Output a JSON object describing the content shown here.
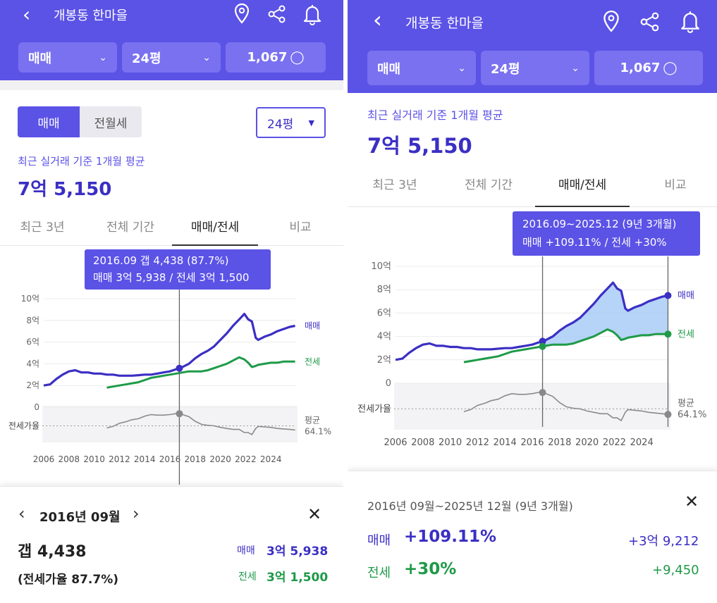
{
  "header": {
    "title": "개봉동 한마을",
    "filters": {
      "trade_type": "매매",
      "size": "24평",
      "count": "1,067"
    }
  },
  "controls": {
    "segment": [
      "매매",
      "전월세"
    ],
    "size_dropdown": "24평"
  },
  "summary": {
    "label": "최근 실거래 기준 1개월 평균",
    "value": "7억 5,150"
  },
  "tabs": [
    "최근 3년",
    "전체 기간",
    "매매/전세",
    "비교"
  ],
  "chart_labels": {
    "y_ticks": [
      "10억",
      "8억",
      "6억",
      "4억",
      "2억",
      "0"
    ],
    "x_ticks": [
      "2006",
      "2008",
      "2010",
      "2012",
      "2014",
      "2016",
      "2018",
      "2020",
      "2022",
      "2024"
    ],
    "series_sale": "매매",
    "series_rent": "전세",
    "ratio_label": "전세가율",
    "avg_label": "평균",
    "avg_value": "64.1%"
  },
  "left": {
    "tooltip": {
      "line1": "2016.09  갭 4,438 (87.7%)",
      "line2": "매매 3억 5,938 / 전세 3억 1,500"
    },
    "detail": {
      "month": "2016년 09월",
      "gap": "갭 4,438",
      "ratio": "(전세가율 87.7%)",
      "sale_label": "매매",
      "sale_value": "3억 5,938",
      "rent_label": "전세",
      "rent_value": "3억 1,500"
    }
  },
  "right": {
    "tooltip": {
      "line1": "2016.09~2025.12 (9년 3개월)",
      "line2": "매매 +109.11%  /  전세 +30%"
    },
    "detail": {
      "period": "2016년 09월~2025년 12월 (9년 3개월)",
      "sale_label": "매매",
      "sale_pct": "+109.11%",
      "sale_abs": "+3억 9,212",
      "rent_label": "전세",
      "rent_pct": "+30%",
      "rent_abs": "+9,450"
    }
  },
  "colors": {
    "brand": "#5b52e6",
    "sale": "#3b2fc4",
    "rent": "#1e9a48"
  },
  "chart_data": {
    "type": "line",
    "xlabel": "",
    "ylabel": "",
    "ylim": [
      0,
      10
    ],
    "x": [
      2006.0,
      2006.5,
      2007.0,
      2007.5,
      2008.0,
      2008.5,
      2009.0,
      2009.5,
      2010.0,
      2010.5,
      2011.0,
      2011.5,
      2012.0,
      2012.5,
      2013.0,
      2013.5,
      2014.0,
      2014.5,
      2015.0,
      2015.5,
      2016.0,
      2016.5,
      2016.75,
      2017.0,
      2017.5,
      2018.0,
      2018.5,
      2019.0,
      2019.5,
      2020.0,
      2020.5,
      2021.0,
      2021.5,
      2021.9,
      2022.2,
      2022.5,
      2022.8,
      2023.0,
      2023.5,
      2024.0,
      2024.5,
      2025.0,
      2025.5,
      2025.92
    ],
    "series": [
      {
        "name": "매매",
        "values": [
          2.0,
          2.1,
          2.6,
          3.0,
          3.3,
          3.4,
          3.2,
          3.2,
          3.1,
          3.1,
          3.0,
          3.0,
          2.9,
          2.9,
          2.9,
          2.95,
          3.0,
          3.0,
          3.1,
          3.2,
          3.3,
          3.5,
          3.59,
          3.7,
          4.0,
          4.5,
          4.9,
          5.2,
          5.6,
          6.2,
          6.8,
          7.5,
          8.1,
          8.6,
          8.1,
          7.9,
          6.4,
          6.2,
          6.5,
          6.7,
          7.0,
          7.2,
          7.4,
          7.5
        ]
      },
      {
        "name": "전세",
        "values": [
          null,
          null,
          null,
          null,
          null,
          null,
          null,
          null,
          null,
          null,
          1.8,
          1.9,
          2.0,
          2.1,
          2.2,
          2.3,
          2.5,
          2.7,
          2.8,
          2.9,
          3.0,
          3.1,
          3.15,
          3.2,
          3.3,
          3.3,
          3.3,
          3.4,
          3.6,
          3.8,
          4.0,
          4.3,
          4.6,
          4.4,
          4.1,
          3.7,
          3.8,
          3.9,
          4.0,
          4.1,
          4.1,
          4.2,
          4.2,
          4.2
        ]
      },
      {
        "name": "전세가율",
        "values": [
          null,
          null,
          null,
          null,
          null,
          null,
          null,
          null,
          null,
          null,
          60,
          63,
          69,
          72,
          76,
          78,
          83,
          86,
          85,
          85,
          86,
          88,
          87.7,
          86,
          82,
          73,
          67,
          65,
          64,
          61,
          59,
          57,
          57,
          51,
          51,
          47,
          59,
          63,
          62,
          61,
          59,
          58,
          57,
          56
        ]
      }
    ],
    "ratio_avg": 64.1,
    "markers": {
      "left": [
        2016.75
      ],
      "right": [
        2016.75,
        2025.92
      ]
    }
  }
}
